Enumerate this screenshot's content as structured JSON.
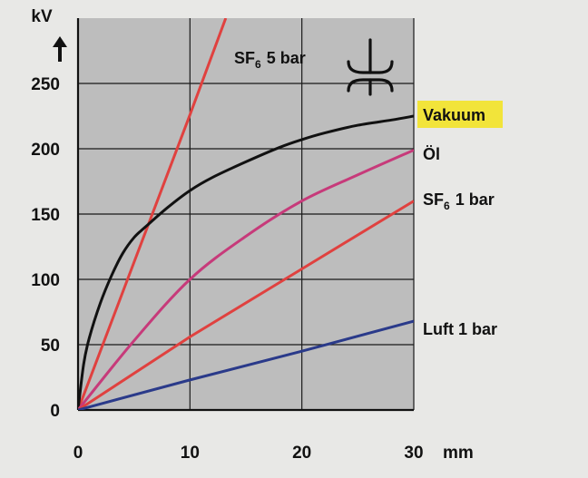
{
  "chart_data": {
    "type": "line",
    "title": "",
    "xlabel": "",
    "ylabel": "",
    "x_unit": "mm",
    "y_unit": "kV",
    "xlim": [
      0,
      30
    ],
    "ylim": [
      0,
      300
    ],
    "x_ticks": [
      0,
      10,
      20,
      30
    ],
    "y_ticks": [
      0,
      50,
      100,
      150,
      200,
      250
    ],
    "grid": true,
    "colors": {
      "plot_background": "#bdbdbd",
      "page_background": "#e8e8e6",
      "grid": "#1a1a1a",
      "highlight": "#f2e43a"
    },
    "series": [
      {
        "name": "SF6 5 bar",
        "label_main": "SF",
        "label_sub": "6",
        "label_rest": "5 bar",
        "color": "#e0413f",
        "x": [
          0,
          5,
          10,
          13.2
        ],
        "y": [
          0,
          113,
          226,
          300
        ]
      },
      {
        "name": "Vakuum",
        "label_main": "Vakuum",
        "highlight": true,
        "color": "#111111",
        "x": [
          0,
          0.5,
          1,
          2,
          3,
          4,
          5,
          6,
          8,
          10,
          12,
          15,
          18,
          20,
          22,
          25,
          28,
          30
        ],
        "y": [
          0,
          35,
          55,
          82,
          103,
          120,
          132,
          140,
          155,
          168,
          178,
          190,
          201,
          207,
          212,
          218,
          222,
          225
        ]
      },
      {
        "name": "Öl",
        "label_main": "Öl",
        "color": "#c73a7a",
        "x": [
          0,
          5,
          10,
          15,
          20,
          25,
          30
        ],
        "y": [
          0,
          53,
          100,
          133,
          160,
          180,
          199
        ]
      },
      {
        "name": "SF6 1 bar",
        "label_main": "SF",
        "label_sub": "6",
        "label_rest": "1 bar",
        "color": "#e0413f",
        "x": [
          0,
          10,
          20,
          30
        ],
        "y": [
          0,
          56,
          108,
          160
        ]
      },
      {
        "name": "Luft 1 bar",
        "label_main": "Luft  1 bar",
        "color": "#2a3a8a",
        "x": [
          0,
          10,
          20,
          30
        ],
        "y": [
          0,
          23,
          45,
          68
        ]
      }
    ],
    "icon": "vacuum-interrupter-contacts-icon"
  }
}
